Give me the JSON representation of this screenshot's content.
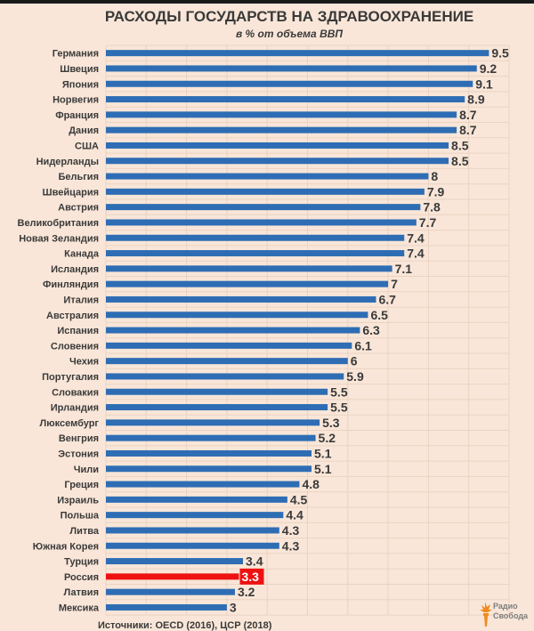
{
  "chart_data": {
    "type": "bar",
    "orientation": "horizontal",
    "title": "РАСХОДЫ ГОСУДАРСТВ НА ЗДРАВООХРАНЕНИЕ",
    "subtitle": "в % от объема ВВП",
    "xlabel": "",
    "ylabel": "",
    "xlim": [
      0,
      10
    ],
    "grid": true,
    "legend": "none",
    "categories": [
      "Германия",
      "Швеция",
      "Япония",
      "Норвегия",
      "Франция",
      "Дания",
      "США",
      "Нидерланды",
      "Бельгия",
      "Швейцария",
      "Австрия",
      "Великобритания",
      "Новая Зеландия",
      "Канада",
      "Исландия",
      "Финляндия",
      "Италия",
      "Австралия",
      "Испания",
      "Словения",
      "Чехия",
      "Португалия",
      "Словакия",
      "Ирландия",
      "Люксембург",
      "Венгрия",
      "Эстония",
      "Чили",
      "Греция",
      "Израиль",
      "Польша",
      "Литва",
      "Южная Корея",
      "Турция",
      "Россия",
      "Латвия",
      "Мексика"
    ],
    "values": [
      9.5,
      9.2,
      9.1,
      8.9,
      8.7,
      8.7,
      8.5,
      8.5,
      8,
      7.9,
      7.8,
      7.7,
      7.4,
      7.4,
      7.1,
      7,
      6.7,
      6.5,
      6.3,
      6.1,
      6,
      5.9,
      5.5,
      5.5,
      5.3,
      5.2,
      5.1,
      5.1,
      4.8,
      4.5,
      4.4,
      4.3,
      4.3,
      3.4,
      3.3,
      3.2,
      3
    ],
    "value_labels": [
      "9.5",
      "9.2",
      "9.1",
      "8.9",
      "8.7",
      "8.7",
      "8.5",
      "8.5",
      "8",
      "7.9",
      "7.8",
      "7.7",
      "7.4",
      "7.4",
      "7.1",
      "7",
      "6.7",
      "6.5",
      "6.3",
      "6.1",
      "6",
      "5.9",
      "5.5",
      "5.5",
      "5.3",
      "5.2",
      "5.1",
      "5.1",
      "4.8",
      "4.5",
      "4.4",
      "4.3",
      "4.3",
      "3.4",
      "3.3",
      "3.2",
      "3"
    ],
    "highlight": "Россия",
    "colors": {
      "bar": "#2e6db4",
      "highlight": "#ee1111",
      "grid": "#ead3c2"
    }
  },
  "page": {
    "background": "#f9e6d8",
    "source_text": "Источники: OECD (2016), ЦСР (2018)",
    "logo": {
      "line1": "Радио",
      "line2": "Свобода",
      "color": "#f08a1c"
    }
  }
}
